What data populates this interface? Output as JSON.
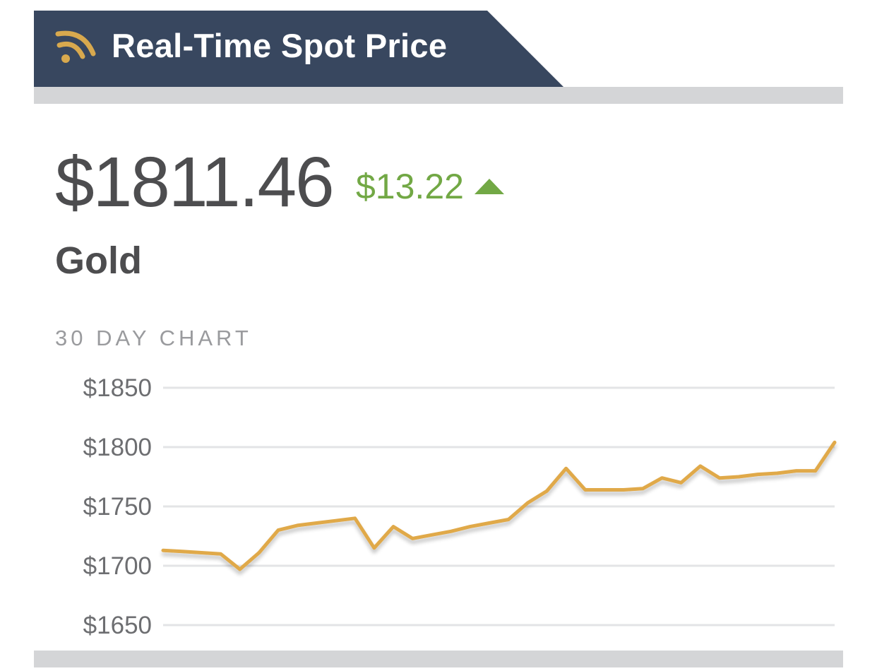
{
  "header": {
    "title": "Real-Time Spot Price",
    "icon": "signal-icon",
    "bg_color": "#38475f",
    "icon_color": "#d8a94e"
  },
  "price": {
    "value": "$1811.46",
    "change": "$13.22",
    "direction": "up",
    "change_color": "#72a845",
    "metal": "Gold"
  },
  "chart_label": "30 DAY CHART",
  "chart_data": {
    "type": "line",
    "title": "",
    "xlabel": "",
    "ylabel": "",
    "ylim": [
      1650,
      1850
    ],
    "yticks": [
      1850,
      1800,
      1750,
      1700,
      1650
    ],
    "ytick_labels": [
      "$1850",
      "$1800",
      "$1750",
      "$1700",
      "$1650"
    ],
    "grid": true,
    "line_color": "#e0a94a",
    "x": [
      0,
      1,
      2,
      3,
      4,
      5,
      6,
      7,
      8,
      9,
      10,
      11,
      12,
      13,
      14,
      15,
      16,
      17,
      18,
      19,
      20,
      21,
      22,
      23,
      24,
      25,
      26,
      27,
      28,
      29,
      30,
      31,
      32,
      33,
      34,
      35
    ],
    "values": [
      1713,
      1712,
      1711,
      1710,
      1697,
      1711,
      1730,
      1734,
      1736,
      1738,
      1740,
      1715,
      1733,
      1723,
      1726,
      1729,
      1733,
      1736,
      1739,
      1753,
      1763,
      1782,
      1764,
      1764,
      1764,
      1765,
      1774,
      1770,
      1784,
      1774,
      1775,
      1777,
      1778,
      1780,
      1780,
      1804
    ]
  }
}
